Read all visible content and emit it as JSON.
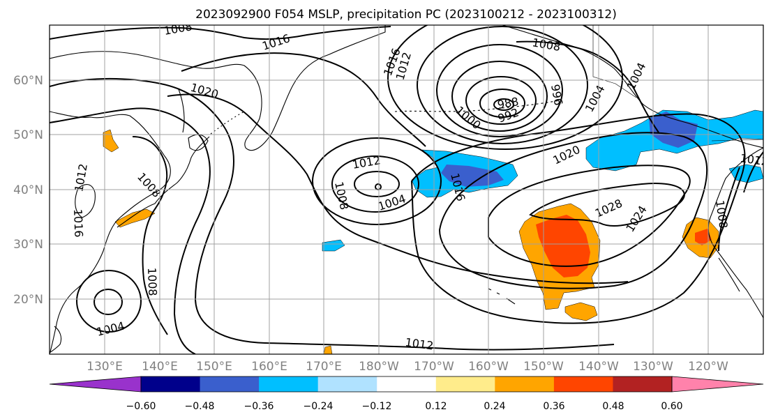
{
  "title": "2023092900 F054 MSLP, precipitation PC (2023100212 - 2023100312)",
  "map": {
    "lat_labels": [
      "60°N",
      "50°N",
      "40°N",
      "30°N",
      "20°N"
    ],
    "lon_labels": [
      "130°E",
      "140°E",
      "150°E",
      "160°E",
      "170°E",
      "180°W",
      "170°W",
      "160°W",
      "150°W",
      "140°W",
      "130°W",
      "120°W"
    ],
    "isobar_labels": [
      "1008",
      "1016",
      "1008",
      "1012",
      "1020",
      "996",
      "1000",
      "988",
      "992",
      "1004",
      "1012",
      "1008",
      "1004",
      "1016",
      "1020",
      "1028",
      "1024",
      "1012",
      "1008",
      "1004",
      "1008",
      "1012",
      "1016",
      "1004",
      "1012",
      "1016",
      "1008"
    ],
    "line_color": "#000000",
    "grid_color": "#a0a0a0"
  },
  "colorbar": {
    "colors": [
      "#9932cc",
      "#00008b",
      "#3a5fcd",
      "#00bfff",
      "#b0e2ff",
      "#ffffff",
      "#ffec8b",
      "#ffa500",
      "#ff4500",
      "#b22222",
      "#ff82ab"
    ],
    "tick_labels": [
      "−0.60",
      "−0.48",
      "−0.36",
      "−0.24",
      "−0.12",
      "0.12",
      "0.24",
      "0.36",
      "0.48",
      "0.60"
    ]
  }
}
